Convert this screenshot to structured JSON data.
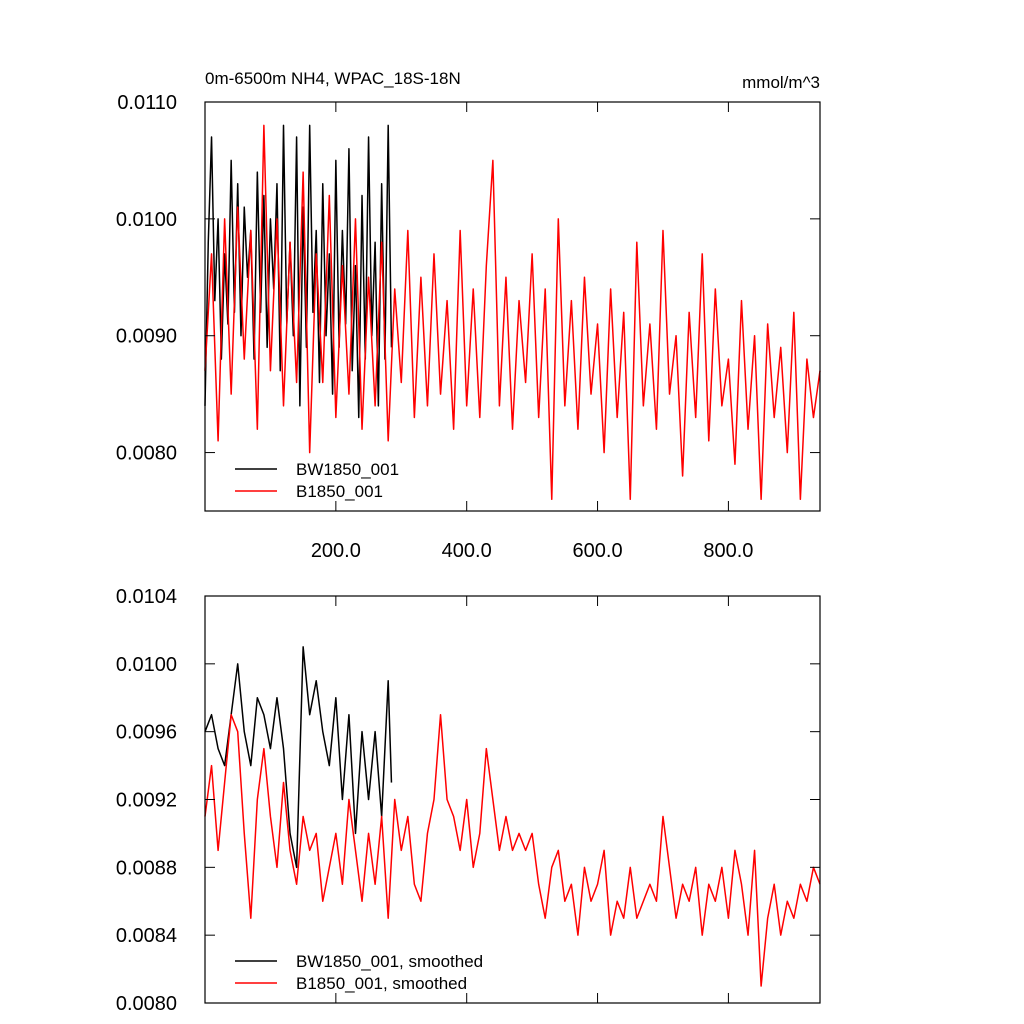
{
  "chart_data": [
    {
      "type": "line",
      "title": "0m-6500m NH4, WPAC_18S-18N",
      "units": "mmol/m^3",
      "xlim": [
        0,
        940
      ],
      "ylim": [
        0.0075,
        0.011
      ],
      "xticks": [
        {
          "value": 200,
          "label": "200.0"
        },
        {
          "value": 400,
          "label": "400.0"
        },
        {
          "value": 600,
          "label": "600.0"
        },
        {
          "value": 800,
          "label": "800.0"
        }
      ],
      "xtick_labels": true,
      "yticks": [
        {
          "value": 0.008,
          "label": "0.0080"
        },
        {
          "value": 0.009,
          "label": "0.0090"
        },
        {
          "value": 0.01,
          "label": "0.0100"
        },
        {
          "value": 0.011,
          "label": "0.0110"
        }
      ],
      "legend": "lower left",
      "series": [
        {
          "name": "BW1850_001",
          "color": "#000000",
          "x": [
            0,
            5,
            10,
            15,
            20,
            25,
            30,
            35,
            40,
            45,
            50,
            55,
            60,
            65,
            70,
            75,
            80,
            85,
            90,
            95,
            100,
            105,
            110,
            115,
            120,
            125,
            130,
            135,
            140,
            145,
            150,
            155,
            160,
            165,
            170,
            175,
            180,
            185,
            190,
            195,
            200,
            205,
            210,
            215,
            220,
            225,
            230,
            235,
            240,
            245,
            250,
            255,
            260,
            265,
            270,
            275,
            280,
            285
          ],
          "values": [
            0.0084,
            0.0098,
            0.0107,
            0.0093,
            0.01,
            0.0088,
            0.0097,
            0.0091,
            0.0105,
            0.0092,
            0.0103,
            0.009,
            0.0101,
            0.0095,
            0.0099,
            0.0088,
            0.0104,
            0.0092,
            0.0102,
            0.0089,
            0.01,
            0.0094,
            0.0103,
            0.0087,
            0.0108,
            0.0091,
            0.0098,
            0.009,
            0.0107,
            0.0084,
            0.0101,
            0.0089,
            0.0108,
            0.0092,
            0.0099,
            0.0086,
            0.0103,
            0.009,
            0.0097,
            0.0085,
            0.0105,
            0.0089,
            0.0099,
            0.0091,
            0.0106,
            0.0087,
            0.0096,
            0.0083,
            0.0102,
            0.0088,
            0.0107,
            0.009,
            0.0098,
            0.0084,
            0.0103,
            0.0088,
            0.0108,
            0.0089
          ]
        },
        {
          "name": "B1850_001",
          "color": "#ff0000",
          "x": [
            0,
            10,
            20,
            30,
            40,
            50,
            60,
            70,
            80,
            90,
            100,
            110,
            120,
            130,
            140,
            150,
            160,
            170,
            180,
            190,
            200,
            210,
            220,
            230,
            240,
            250,
            260,
            270,
            280,
            290,
            300,
            310,
            320,
            330,
            340,
            350,
            360,
            370,
            380,
            390,
            400,
            410,
            420,
            430,
            440,
            450,
            460,
            470,
            480,
            490,
            500,
            510,
            520,
            530,
            540,
            550,
            560,
            570,
            580,
            590,
            600,
            610,
            620,
            630,
            640,
            650,
            660,
            670,
            680,
            690,
            700,
            710,
            720,
            730,
            740,
            750,
            760,
            770,
            780,
            790,
            800,
            810,
            820,
            830,
            840,
            850,
            860,
            870,
            880,
            890,
            900,
            910,
            920,
            930,
            940
          ],
          "values": [
            0.0087,
            0.0097,
            0.0081,
            0.01,
            0.0085,
            0.0101,
            0.0088,
            0.0099,
            0.0082,
            0.0108,
            0.0087,
            0.01,
            0.0084,
            0.0098,
            0.0086,
            0.0104,
            0.008,
            0.0097,
            0.0086,
            0.0102,
            0.0083,
            0.0096,
            0.0085,
            0.01,
            0.0082,
            0.0095,
            0.0084,
            0.0098,
            0.0081,
            0.0094,
            0.0086,
            0.0099,
            0.0083,
            0.0095,
            0.0084,
            0.0097,
            0.0085,
            0.0093,
            0.0082,
            0.0099,
            0.0084,
            0.0094,
            0.0083,
            0.0096,
            0.0105,
            0.0084,
            0.0095,
            0.0082,
            0.0093,
            0.0086,
            0.0097,
            0.0083,
            0.0094,
            0.0076,
            0.01,
            0.0084,
            0.0093,
            0.0082,
            0.0095,
            0.0085,
            0.0091,
            0.008,
            0.0094,
            0.0083,
            0.0092,
            0.0076,
            0.0098,
            0.0084,
            0.0091,
            0.0082,
            0.0099,
            0.0085,
            0.009,
            0.0078,
            0.0092,
            0.0083,
            0.0097,
            0.0081,
            0.0094,
            0.0084,
            0.0088,
            0.0079,
            0.0093,
            0.0082,
            0.009,
            0.0076,
            0.0091,
            0.0083,
            0.0089,
            0.008,
            0.0092,
            0.0076,
            0.0088,
            0.0083,
            0.0087
          ]
        }
      ]
    },
    {
      "type": "line",
      "xlim": [
        0,
        940
      ],
      "ylim": [
        0.008,
        0.0104
      ],
      "xticks": [
        200,
        400,
        600,
        800
      ],
      "xtick_labels": false,
      "yticks": [
        {
          "value": 0.008,
          "label": "0.0080"
        },
        {
          "value": 0.0084,
          "label": "0.0084"
        },
        {
          "value": 0.0088,
          "label": "0.0088"
        },
        {
          "value": 0.0092,
          "label": "0.0092"
        },
        {
          "value": 0.0096,
          "label": "0.0096"
        },
        {
          "value": 0.01,
          "label": "0.0100"
        },
        {
          "value": 0.0104,
          "label": "0.0104"
        }
      ],
      "legend": "lower left",
      "series": [
        {
          "name": "BW1850_001, smoothed",
          "color": "#000000",
          "x": [
            0,
            10,
            20,
            30,
            40,
            50,
            60,
            70,
            80,
            90,
            100,
            110,
            120,
            130,
            140,
            150,
            160,
            170,
            180,
            190,
            200,
            210,
            220,
            230,
            240,
            250,
            260,
            270,
            280,
            285
          ],
          "values": [
            0.0096,
            0.0097,
            0.0095,
            0.0094,
            0.0097,
            0.01,
            0.0096,
            0.0094,
            0.0098,
            0.0097,
            0.0095,
            0.0098,
            0.0095,
            0.009,
            0.0088,
            0.0101,
            0.0097,
            0.0099,
            0.0096,
            0.0094,
            0.0098,
            0.0092,
            0.0097,
            0.009,
            0.0096,
            0.0092,
            0.0096,
            0.0091,
            0.0099,
            0.0093
          ]
        },
        {
          "name": "B1850_001, smoothed",
          "color": "#ff0000",
          "x": [
            0,
            10,
            20,
            30,
            40,
            50,
            60,
            70,
            80,
            90,
            100,
            110,
            120,
            130,
            140,
            150,
            160,
            170,
            180,
            190,
            200,
            210,
            220,
            230,
            240,
            250,
            260,
            270,
            280,
            290,
            300,
            310,
            320,
            330,
            340,
            350,
            360,
            370,
            380,
            390,
            400,
            410,
            420,
            430,
            440,
            450,
            460,
            470,
            480,
            490,
            500,
            510,
            520,
            530,
            540,
            550,
            560,
            570,
            580,
            590,
            600,
            610,
            620,
            630,
            640,
            650,
            660,
            670,
            680,
            690,
            700,
            710,
            720,
            730,
            740,
            750,
            760,
            770,
            780,
            790,
            800,
            810,
            820,
            830,
            840,
            850,
            860,
            870,
            880,
            890,
            900,
            910,
            920,
            930,
            940
          ],
          "values": [
            0.0091,
            0.0094,
            0.0089,
            0.0093,
            0.0097,
            0.0096,
            0.009,
            0.0085,
            0.0092,
            0.0095,
            0.0091,
            0.0088,
            0.0093,
            0.0089,
            0.0087,
            0.0091,
            0.0089,
            0.009,
            0.0086,
            0.0088,
            0.009,
            0.0087,
            0.0092,
            0.0089,
            0.0086,
            0.009,
            0.0087,
            0.0091,
            0.0085,
            0.0092,
            0.0089,
            0.0091,
            0.0087,
            0.0086,
            0.009,
            0.0092,
            0.0097,
            0.0092,
            0.0091,
            0.0089,
            0.0092,
            0.0088,
            0.009,
            0.0095,
            0.0092,
            0.0089,
            0.0091,
            0.0089,
            0.009,
            0.0089,
            0.009,
            0.0087,
            0.0085,
            0.0088,
            0.0089,
            0.0086,
            0.0087,
            0.0084,
            0.0088,
            0.0086,
            0.0087,
            0.0089,
            0.0084,
            0.0086,
            0.0085,
            0.0088,
            0.0085,
            0.0086,
            0.0087,
            0.0086,
            0.0091,
            0.0088,
            0.0085,
            0.0087,
            0.0086,
            0.0088,
            0.0084,
            0.0087,
            0.0086,
            0.0088,
            0.0085,
            0.0089,
            0.0087,
            0.0084,
            0.0089,
            0.0081,
            0.0085,
            0.0087,
            0.0084,
            0.0086,
            0.0085,
            0.0087,
            0.0086,
            0.0088,
            0.0087
          ]
        }
      ]
    }
  ]
}
